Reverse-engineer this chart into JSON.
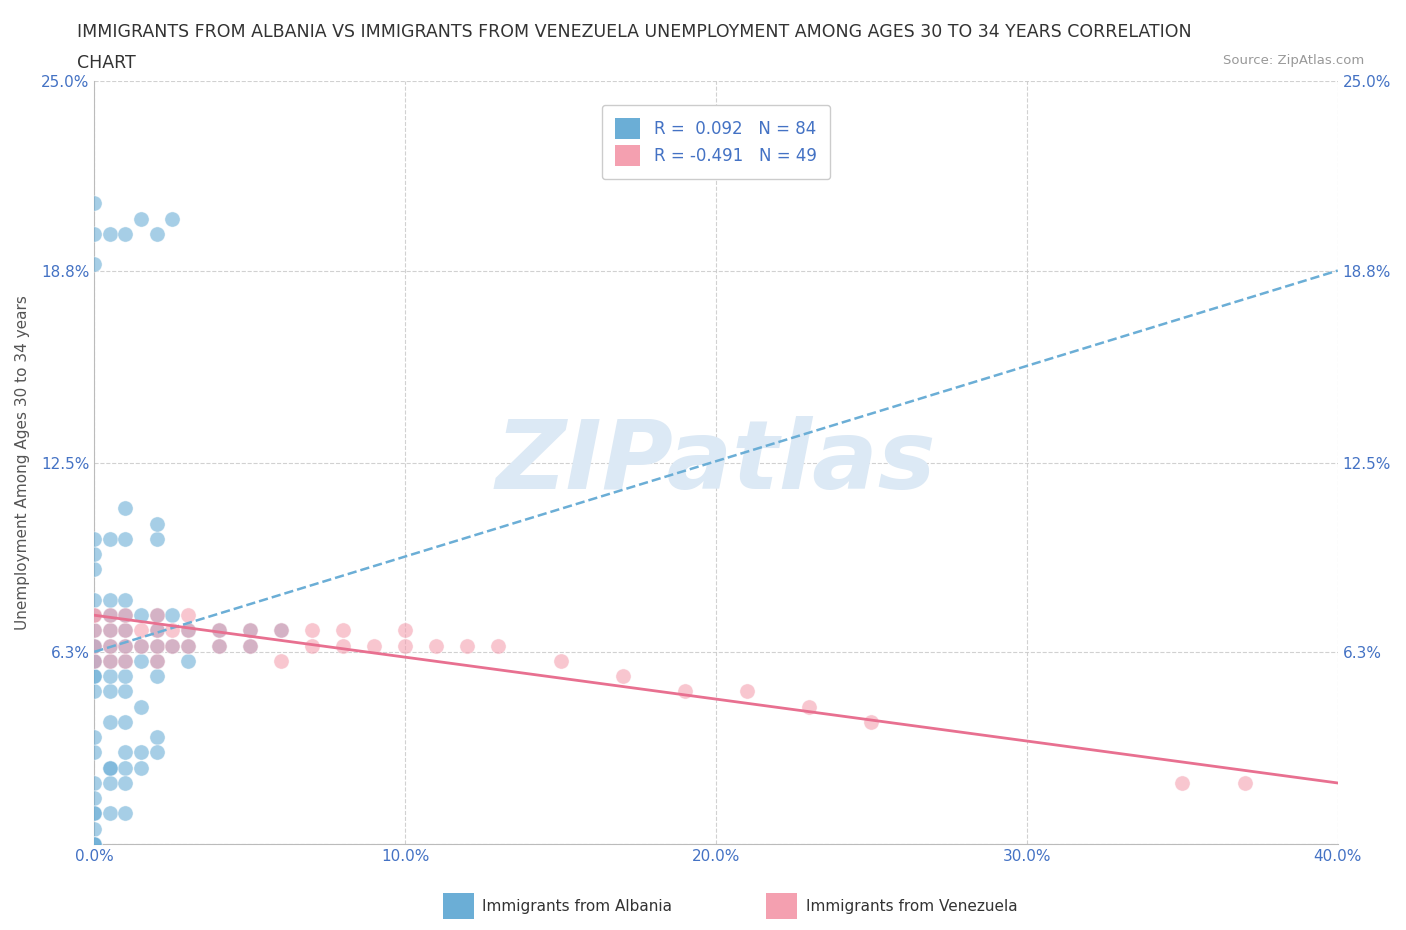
{
  "title_line1": "IMMIGRANTS FROM ALBANIA VS IMMIGRANTS FROM VENEZUELA UNEMPLOYMENT AMONG AGES 30 TO 34 YEARS CORRELATION",
  "title_line2": "CHART",
  "source_text": "Source: ZipAtlas.com",
  "ylabel": "Unemployment Among Ages 30 to 34 years",
  "xlim": [
    0.0,
    0.4
  ],
  "ylim": [
    0.0,
    0.25
  ],
  "yticks": [
    0.0,
    0.063,
    0.125,
    0.188,
    0.25
  ],
  "ytick_labels": [
    "",
    "6.3%",
    "12.5%",
    "18.8%",
    "25.0%"
  ],
  "xticks": [
    0.0,
    0.1,
    0.2,
    0.3,
    0.4
  ],
  "xtick_labels": [
    "0.0%",
    "10.0%",
    "20.0%",
    "30.0%",
    "40.0%"
  ],
  "albania_color": "#6baed6",
  "venezuela_color": "#f4a0b0",
  "albania_R": 0.092,
  "albania_N": 84,
  "venezuela_R": -0.491,
  "venezuela_N": 49,
  "watermark_text": "ZIPatlas",
  "legend_entries": [
    "R =  0.092   N = 84",
    "R = -0.491   N = 49"
  ],
  "footer_legend": [
    "Immigrants from Albania",
    "Immigrants from Venezuela"
  ],
  "albania_scatter_x": [
    0.0,
    0.0,
    0.0,
    0.0,
    0.0,
    0.0,
    0.0,
    0.0,
    0.0,
    0.0,
    0.0,
    0.0,
    0.005,
    0.005,
    0.005,
    0.005,
    0.005,
    0.005,
    0.005,
    0.01,
    0.01,
    0.01,
    0.01,
    0.01,
    0.01,
    0.01,
    0.015,
    0.015,
    0.015,
    0.02,
    0.02,
    0.02,
    0.02,
    0.02,
    0.025,
    0.025,
    0.03,
    0.03,
    0.03,
    0.04,
    0.04,
    0.05,
    0.05,
    0.06,
    0.0,
    0.005,
    0.01,
    0.01,
    0.02,
    0.02,
    0.0,
    0.0,
    0.005,
    0.01,
    0.015,
    0.0,
    0.005,
    0.01,
    0.01,
    0.015,
    0.02,
    0.0,
    0.0,
    0.005,
    0.005,
    0.01,
    0.015,
    0.02,
    0.0,
    0.0,
    0.0,
    0.005,
    0.01,
    0.015,
    0.02,
    0.025,
    0.0,
    0.0,
    0.005,
    0.01,
    0.0,
    0.0,
    0.0
  ],
  "albania_scatter_y": [
    0.05,
    0.055,
    0.055,
    0.06,
    0.06,
    0.065,
    0.065,
    0.07,
    0.075,
    0.08,
    0.09,
    0.095,
    0.05,
    0.055,
    0.06,
    0.065,
    0.07,
    0.075,
    0.08,
    0.05,
    0.055,
    0.06,
    0.065,
    0.07,
    0.075,
    0.08,
    0.06,
    0.065,
    0.075,
    0.055,
    0.06,
    0.065,
    0.07,
    0.075,
    0.065,
    0.075,
    0.06,
    0.065,
    0.07,
    0.065,
    0.07,
    0.065,
    0.07,
    0.07,
    0.1,
    0.1,
    0.1,
    0.11,
    0.1,
    0.105,
    0.03,
    0.035,
    0.04,
    0.04,
    0.045,
    0.02,
    0.025,
    0.025,
    0.03,
    0.03,
    0.035,
    0.01,
    0.015,
    0.02,
    0.025,
    0.02,
    0.025,
    0.03,
    0.19,
    0.2,
    0.21,
    0.2,
    0.2,
    0.205,
    0.2,
    0.205,
    0.005,
    0.01,
    0.01,
    0.01,
    0.0,
    0.0,
    0.0
  ],
  "venezuela_scatter_x": [
    0.0,
    0.0,
    0.0,
    0.0,
    0.005,
    0.005,
    0.005,
    0.01,
    0.01,
    0.01,
    0.015,
    0.015,
    0.02,
    0.02,
    0.02,
    0.025,
    0.025,
    0.03,
    0.03,
    0.04,
    0.04,
    0.05,
    0.05,
    0.06,
    0.06,
    0.07,
    0.07,
    0.08,
    0.08,
    0.09,
    0.1,
    0.1,
    0.11,
    0.12,
    0.13,
    0.15,
    0.17,
    0.19,
    0.21,
    0.23,
    0.25,
    0.35,
    0.37,
    0.0,
    0.005,
    0.01,
    0.02,
    0.03
  ],
  "venezuela_scatter_y": [
    0.06,
    0.065,
    0.07,
    0.075,
    0.06,
    0.065,
    0.07,
    0.06,
    0.065,
    0.07,
    0.065,
    0.07,
    0.06,
    0.065,
    0.07,
    0.065,
    0.07,
    0.065,
    0.07,
    0.065,
    0.07,
    0.065,
    0.07,
    0.06,
    0.07,
    0.065,
    0.07,
    0.065,
    0.07,
    0.065,
    0.065,
    0.07,
    0.065,
    0.065,
    0.065,
    0.06,
    0.055,
    0.05,
    0.05,
    0.045,
    0.04,
    0.02,
    0.02,
    0.075,
    0.075,
    0.075,
    0.075,
    0.075
  ],
  "albania_line_x0": 0.0,
  "albania_line_x1": 0.4,
  "albania_line_y0": 0.063,
  "albania_line_y1": 0.188,
  "venezuela_line_x0": 0.0,
  "venezuela_line_x1": 0.4,
  "venezuela_line_y0": 0.075,
  "venezuela_line_y1": 0.02,
  "background_color": "#ffffff",
  "grid_color": "#cccccc",
  "tick_color": "#4472c4",
  "title_fontsize": 12.5,
  "axis_label_fontsize": 11,
  "tick_fontsize": 11,
  "watermark_color": "#dce9f5",
  "watermark_fontsize": 70,
  "legend_fontsize": 12
}
